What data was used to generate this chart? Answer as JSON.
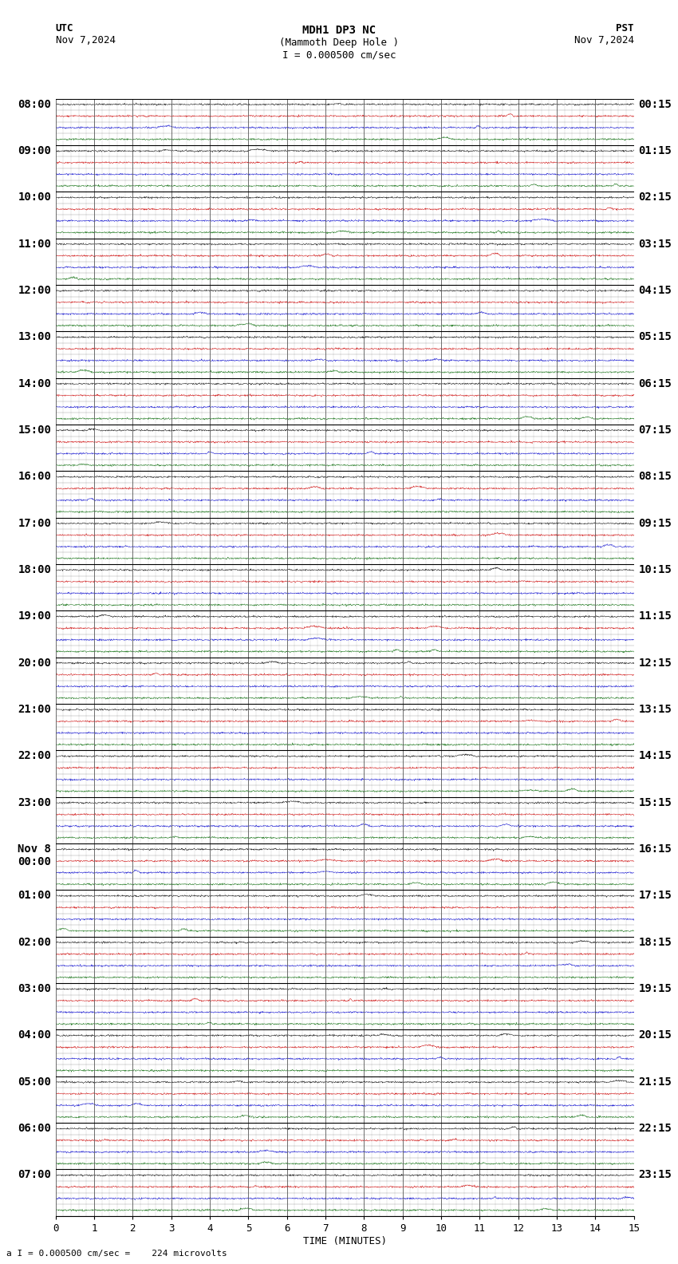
{
  "title_line1": "MDH1 DP3 NC",
  "title_line2": "(Mammoth Deep Hole )",
  "scale_label": "I = 0.000500 cm/sec",
  "utc_label": "UTC",
  "utc_date": "Nov 7,2024",
  "pst_label": "PST",
  "pst_date": "Nov 7,2024",
  "bottom_label": "a I = 0.000500 cm/sec =    224 microvolts",
  "xlabel": "TIME (MINUTES)",
  "left_times_utc": [
    "08:00",
    "09:00",
    "10:00",
    "11:00",
    "12:00",
    "13:00",
    "14:00",
    "15:00",
    "16:00",
    "17:00",
    "18:00",
    "19:00",
    "20:00",
    "21:00",
    "22:00",
    "23:00",
    "Nov 8\n00:00",
    "01:00",
    "02:00",
    "03:00",
    "04:00",
    "05:00",
    "06:00",
    "07:00"
  ],
  "right_times_pst": [
    "00:15",
    "01:15",
    "02:15",
    "03:15",
    "04:15",
    "05:15",
    "06:15",
    "07:15",
    "08:15",
    "09:15",
    "10:15",
    "11:15",
    "12:15",
    "13:15",
    "14:15",
    "15:15",
    "16:15",
    "17:15",
    "18:15",
    "19:15",
    "20:15",
    "21:15",
    "22:15",
    "23:15"
  ],
  "n_rows": 24,
  "traces_per_row": 4,
  "minutes_per_row": 15,
  "bg_color": "#ffffff",
  "trace_color_black": "#000000",
  "trace_color_red": "#cc0000",
  "trace_color_blue": "#0000cc",
  "trace_color_green": "#006600",
  "grid_color": "#888888",
  "grid_major_color": "#666666",
  "font_size": 9,
  "title_font_size": 10,
  "row_label_fontsize": 10
}
